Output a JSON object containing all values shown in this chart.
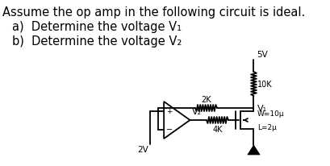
{
  "title_line": "Assume the op amp in the following circuit is ideal.",
  "bullet_a": "Determine the voltage V₁",
  "bullet_b": "Determine the voltage V₂",
  "bg_color": "#ffffff",
  "text_color": "#000000",
  "line_color": "#000000",
  "font_size_title": 10.5,
  "font_size_bullets": 10.5,
  "circuit": {
    "supply_voltage": "5V",
    "r_top": "10K",
    "r_feedback": "2K",
    "r_drain": "4K",
    "mosfet_params_w": "W=10μ",
    "mosfet_params_l": "L=2μ",
    "v_in": "2V",
    "v1_label": "V₁",
    "v2_label": "V₂"
  }
}
